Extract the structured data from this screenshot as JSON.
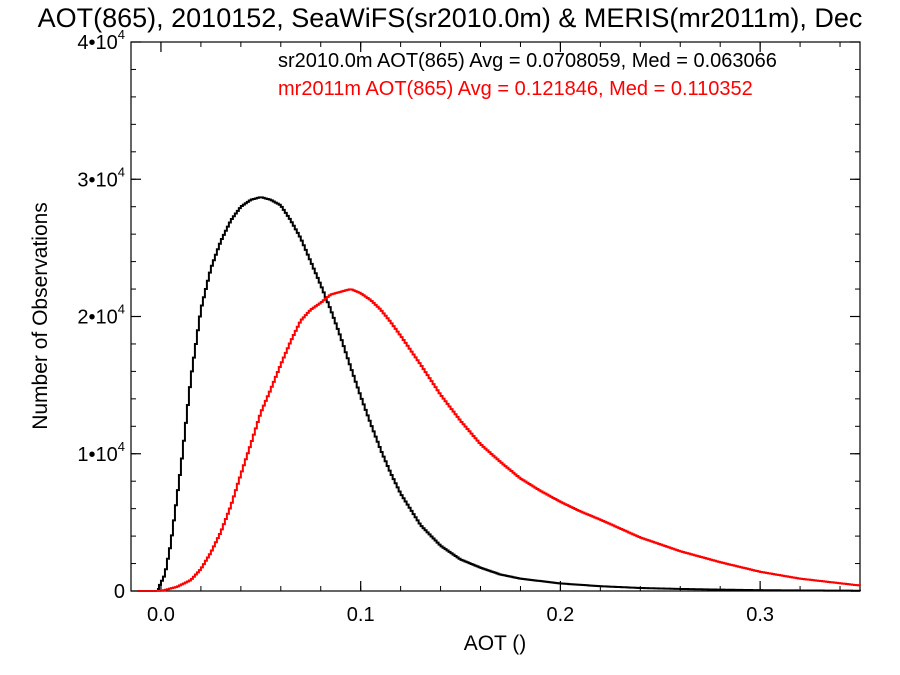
{
  "chart_data": {
    "type": "line",
    "title": "AOT(865), 2010152, SeaWiFS(sr2010.0m) & MERIS(mr2011m), Dec",
    "xlabel": "AOT ()",
    "ylabel": "Number of Observations",
    "xlim": [
      -0.015,
      0.35
    ],
    "ylim": [
      0,
      40000
    ],
    "x_ticks": [
      0.0,
      0.1,
      0.2,
      0.3
    ],
    "x_tick_labels": [
      "0.0",
      "0.1",
      "0.2",
      "0.3"
    ],
    "y_ticks": [
      0,
      10000,
      20000,
      30000,
      40000
    ],
    "y_tick_labels": [
      {
        "base": "0",
        "exp": ""
      },
      {
        "base": "1•10",
        "exp": "4"
      },
      {
        "base": "2•10",
        "exp": "4"
      },
      {
        "base": "3•10",
        "exp": "4"
      },
      {
        "base": "4•10",
        "exp": "4"
      }
    ],
    "grid": false,
    "legend_position": "top-right",
    "series": [
      {
        "name": "sr2010.0m AOT(865) Avg = 0.0708059, Med = 0.063066",
        "color": "#000000",
        "x": [
          -0.002,
          0.002,
          0.005,
          0.01,
          0.015,
          0.02,
          0.025,
          0.03,
          0.035,
          0.04,
          0.045,
          0.05,
          0.055,
          0.06,
          0.065,
          0.07,
          0.075,
          0.08,
          0.085,
          0.09,
          0.095,
          0.1,
          0.105,
          0.11,
          0.115,
          0.12,
          0.13,
          0.14,
          0.15,
          0.16,
          0.17,
          0.18,
          0.2,
          0.22,
          0.24,
          0.26,
          0.28,
          0.3,
          0.32,
          0.35
        ],
        "y": [
          0,
          1200,
          3500,
          9000,
          15500,
          20500,
          23500,
          25500,
          27000,
          28000,
          28500,
          28700,
          28500,
          28100,
          27000,
          25700,
          24000,
          22300,
          20500,
          18500,
          16300,
          14200,
          12200,
          10300,
          8600,
          7100,
          4800,
          3300,
          2300,
          1700,
          1200,
          900,
          550,
          350,
          220,
          150,
          100,
          60,
          40,
          20
        ]
      },
      {
        "name": "mr2011m AOT(865) Avg = 0.121846, Med = 0.110352",
        "color": "#ff0000",
        "x": [
          0.0,
          0.008,
          0.015,
          0.02,
          0.025,
          0.03,
          0.035,
          0.04,
          0.045,
          0.05,
          0.055,
          0.06,
          0.065,
          0.07,
          0.075,
          0.08,
          0.085,
          0.09,
          0.095,
          0.1,
          0.105,
          0.11,
          0.115,
          0.12,
          0.13,
          0.14,
          0.15,
          0.16,
          0.17,
          0.18,
          0.19,
          0.2,
          0.21,
          0.22,
          0.24,
          0.26,
          0.28,
          0.3,
          0.32,
          0.35
        ],
        "y": [
          0,
          300,
          800,
          1600,
          2800,
          4300,
          6200,
          8500,
          10700,
          13000,
          14700,
          16500,
          18200,
          19700,
          20500,
          21000,
          21600,
          21800,
          22000,
          21700,
          21200,
          20500,
          19600,
          18600,
          16500,
          14300,
          12400,
          10700,
          9400,
          8200,
          7300,
          6500,
          5800,
          5200,
          3900,
          2900,
          2100,
          1400,
          900,
          400
        ]
      }
    ]
  }
}
